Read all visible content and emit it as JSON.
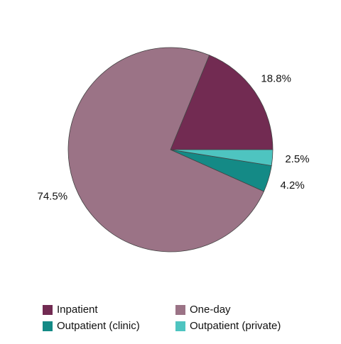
{
  "chart_data": {
    "type": "pie",
    "categories": [
      "Inpatient",
      "One-day",
      "Outpatient (clinic)",
      "Outpatient (private)"
    ],
    "values": [
      18.8,
      74.5,
      4.2,
      2.5
    ],
    "value_labels": [
      "18.8%",
      "74.5%",
      "4.2%",
      "2.5%"
    ],
    "colors": [
      "#722b52",
      "#9b7386",
      "#148a86",
      "#4ec4c0"
    ],
    "legend": "bottom"
  }
}
